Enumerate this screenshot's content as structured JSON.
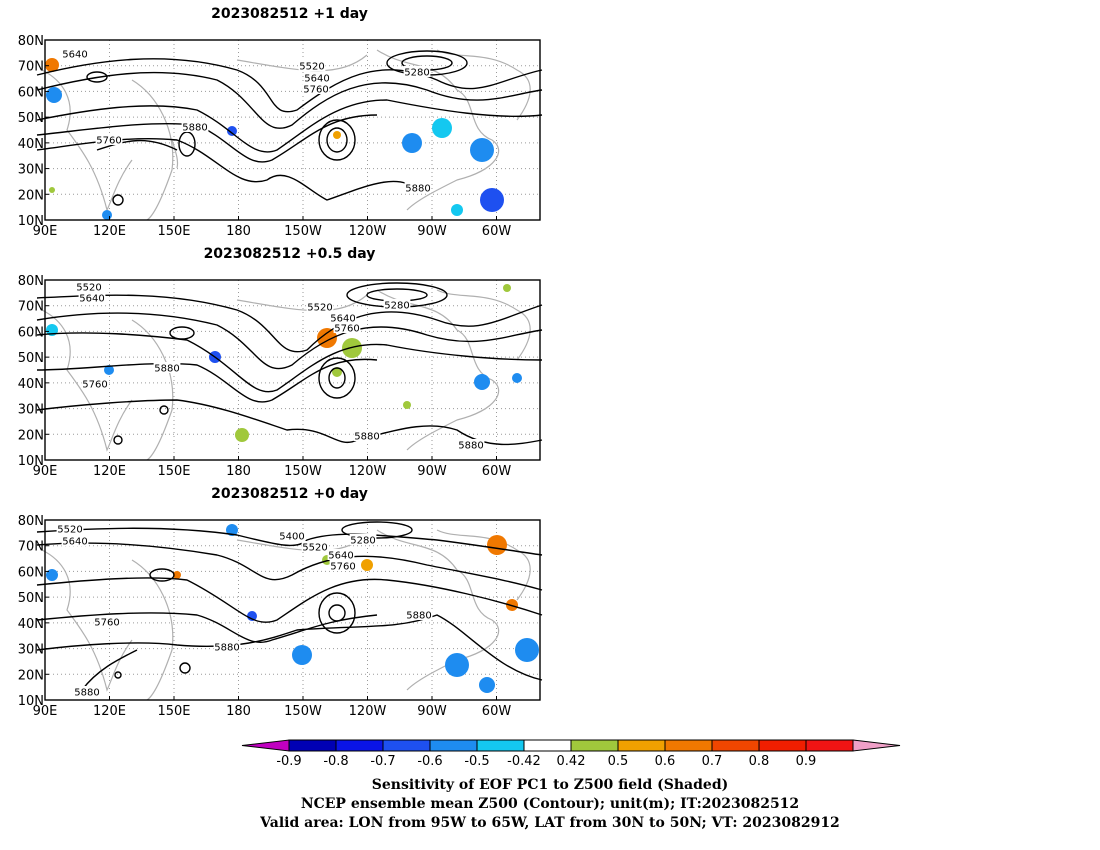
{
  "panels": [
    {
      "title": "2023082512  +1 day",
      "labels": [
        {
          "text": "5640"
        },
        {
          "text": "5520"
        },
        {
          "text": "5640"
        },
        {
          "text": "5760"
        },
        {
          "text": "5280"
        },
        {
          "text": "5880"
        },
        {
          "text": "5760"
        },
        {
          "text": "5880"
        }
      ]
    },
    {
      "title": "2023082512  +0.5 day",
      "labels": [
        {
          "text": "5520"
        },
        {
          "text": "5640"
        },
        {
          "text": "5520"
        },
        {
          "text": "5280"
        },
        {
          "text": "5640"
        },
        {
          "text": "5760"
        },
        {
          "text": "5880"
        },
        {
          "text": "5760"
        },
        {
          "text": "5880"
        },
        {
          "text": "5880"
        }
      ]
    },
    {
      "title": "2023082512  +0 day",
      "labels": [
        {
          "text": "5520"
        },
        {
          "text": "5640"
        },
        {
          "text": "5400"
        },
        {
          "text": "5280"
        },
        {
          "text": "5520"
        },
        {
          "text": "5640"
        },
        {
          "text": "5760"
        },
        {
          "text": "5880"
        },
        {
          "text": "5760"
        },
        {
          "text": "5880"
        },
        {
          "text": "5880"
        }
      ]
    }
  ],
  "axes": {
    "lon_ticks": [
      "90E",
      "120E",
      "150E",
      "180",
      "150W",
      "120W",
      "90W",
      "60W"
    ],
    "lat_ticks": [
      "80N",
      "70N",
      "60N",
      "50N",
      "40N",
      "30N",
      "20N",
      "10N"
    ]
  },
  "colorbar": {
    "ticks": [
      "-0.9",
      "-0.8",
      "-0.7",
      "-0.6",
      "-0.5",
      "-0.42",
      "0.42",
      "0.5",
      "0.6",
      "0.7",
      "0.8",
      "0.9"
    ],
    "colors": [
      "#c000c0",
      "#0000b4",
      "#0a14e6",
      "#1e50f0",
      "#1e8cf0",
      "#14c8f0",
      "#ffffff",
      "#a0c83c",
      "#f0a000",
      "#f07800",
      "#f04600",
      "#f01e00",
      "#f01414",
      "#f0a0c8"
    ]
  },
  "captions": {
    "line1": "Sensitivity of EOF PC1 to Z500 field (Shaded)",
    "line2": "NCEP ensemble mean Z500 (Contour); unit(m); IT:2023082512",
    "line3": "Valid area: LON from 95W to 65W, LAT from 30N to 50N; VT: 2023082912"
  }
}
